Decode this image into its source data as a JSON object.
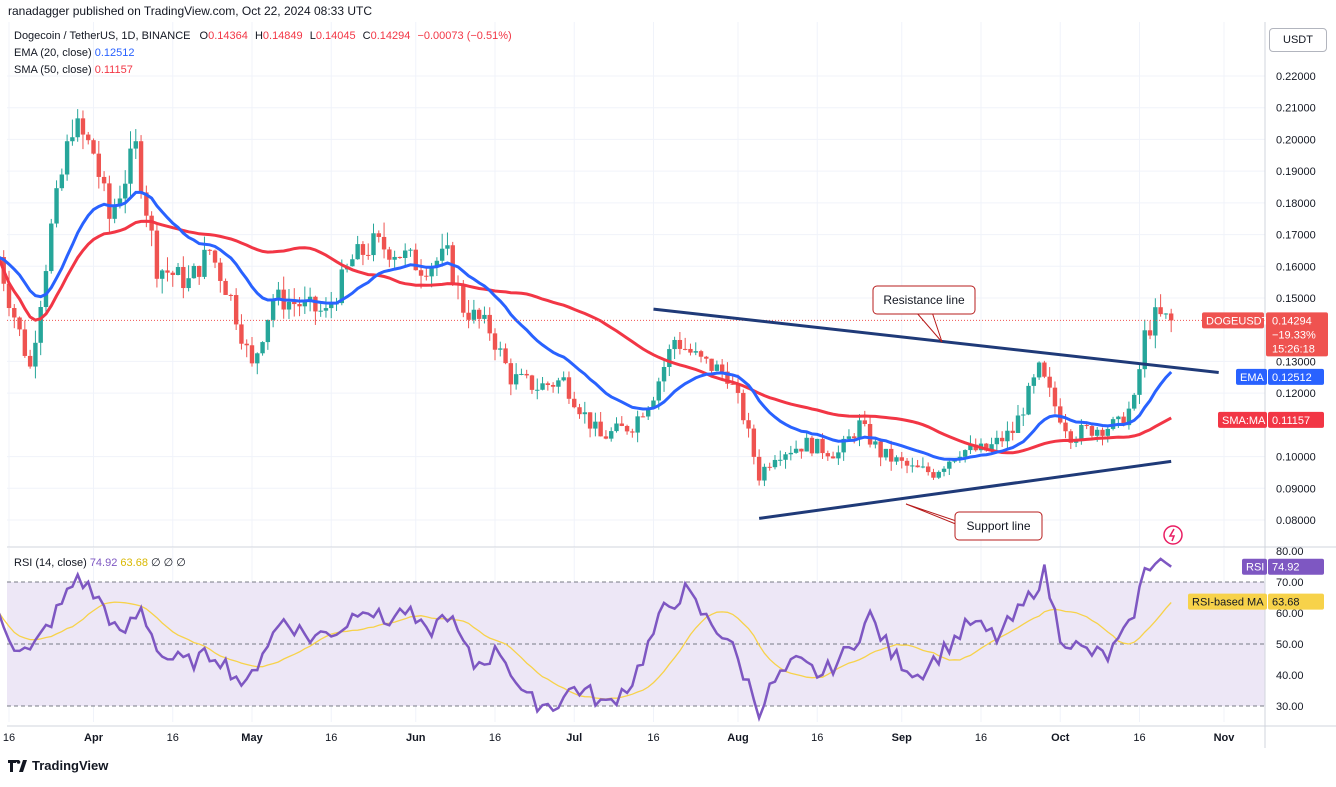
{
  "credit": "ranadagger published on TradingView.com, Oct 22, 2024 08:33 UTC",
  "legend": {
    "symbol": "Dogecoin / TetherUS, 1D, BINANCE",
    "o_label": "O",
    "o": "0.14364",
    "h_label": "H",
    "h": "0.14849",
    "l_label": "L",
    "l": "0.14045",
    "c_label": "C",
    "c": "0.14294",
    "change": "−0.00073 (−0.51%)",
    "ema_label": "EMA (20, close)",
    "ema_value": "0.12512",
    "sma_label": "SMA (50, close)",
    "sma_value": "0.11157",
    "rsi_label": "RSI (14, close)",
    "rsi_value": "74.92",
    "rsi_ma_value": "63.68",
    "rsi_extra": "∅ ∅ ∅"
  },
  "currency_button": "USDT",
  "footer_brand": "TradingView",
  "colors": {
    "up": "#26a69a",
    "down": "#ef5350",
    "ema": "#2962ff",
    "sma": "#f23645",
    "rsi": "#7e57c2",
    "rsi_ma": "#f7d24a",
    "trendline": "#1f3a78",
    "rsi_band": "#ede7f6"
  },
  "chart_data": [
    {
      "type": "candlestick",
      "title": "Dogecoin / TetherUS, 1D, BINANCE",
      "ylim": [
        0.075,
        0.227
      ],
      "y_ticks": [
        "0.22000",
        "0.21000",
        "0.20000",
        "0.19000",
        "0.18000",
        "0.17000",
        "0.16000",
        "0.15000",
        "0.13000",
        "0.12000",
        "0.10000",
        "0.09000",
        "0.08000"
      ],
      "x_ticks": [
        "16",
        "Apr",
        "16",
        "May",
        "16",
        "Jun",
        "16",
        "Jul",
        "16",
        "Aug",
        "16",
        "Sep",
        "16",
        "Oct",
        "16",
        "Nov"
      ],
      "x_tick_dates": [
        "2024-03-16",
        "2024-04-01",
        "2024-04-16",
        "2024-05-01",
        "2024-05-16",
        "2024-06-01",
        "2024-06-16",
        "2024-07-01",
        "2024-07-16",
        "2024-08-01",
        "2024-08-16",
        "2024-09-01",
        "2024-09-16",
        "2024-10-01",
        "2024-10-16",
        "2024-11-01"
      ],
      "close_anchors": [
        [
          "2024-03-14",
          0.163
        ],
        [
          "2024-03-16",
          0.15
        ],
        [
          "2024-03-20",
          0.128
        ],
        [
          "2024-03-24",
          0.172
        ],
        [
          "2024-03-28",
          0.205
        ],
        [
          "2024-04-01",
          0.196
        ],
        [
          "2024-04-04",
          0.175
        ],
        [
          "2024-04-09",
          0.197
        ],
        [
          "2024-04-13",
          0.16
        ],
        [
          "2024-04-19",
          0.155
        ],
        [
          "2024-04-23",
          0.165
        ],
        [
          "2024-04-27",
          0.15
        ],
        [
          "2024-05-01",
          0.128
        ],
        [
          "2024-05-05",
          0.15
        ],
        [
          "2024-05-10",
          0.148
        ],
        [
          "2024-05-15",
          0.145
        ],
        [
          "2024-05-20",
          0.162
        ],
        [
          "2024-05-24",
          0.167
        ],
        [
          "2024-05-28",
          0.165
        ],
        [
          "2024-06-02",
          0.16
        ],
        [
          "2024-06-07",
          0.163
        ],
        [
          "2024-06-10",
          0.147
        ],
        [
          "2024-06-15",
          0.14
        ],
        [
          "2024-06-19",
          0.125
        ],
        [
          "2024-06-24",
          0.122
        ],
        [
          "2024-06-29",
          0.124
        ],
        [
          "2024-07-03",
          0.113
        ],
        [
          "2024-07-06",
          0.106
        ],
        [
          "2024-07-12",
          0.11
        ],
        [
          "2024-07-16",
          0.12
        ],
        [
          "2024-07-20",
          0.137
        ],
        [
          "2024-07-25",
          0.13
        ],
        [
          "2024-07-30",
          0.126
        ],
        [
          "2024-08-02",
          0.113
        ],
        [
          "2024-08-05",
          0.094
        ],
        [
          "2024-08-08",
          0.101
        ],
        [
          "2024-08-14",
          0.104
        ],
        [
          "2024-08-20",
          0.101
        ],
        [
          "2024-08-24",
          0.11
        ],
        [
          "2024-08-28",
          0.101
        ],
        [
          "2024-09-03",
          0.096
        ],
        [
          "2024-09-07",
          0.095
        ],
        [
          "2024-09-12",
          0.102
        ],
        [
          "2024-09-17",
          0.102
        ],
        [
          "2024-09-22",
          0.108
        ],
        [
          "2024-09-27",
          0.127
        ],
        [
          "2024-09-30",
          0.116
        ],
        [
          "2024-10-03",
          0.107
        ],
        [
          "2024-10-08",
          0.109
        ],
        [
          "2024-10-12",
          0.11
        ],
        [
          "2024-10-15",
          0.117
        ],
        [
          "2024-10-17",
          0.138
        ],
        [
          "2024-10-19",
          0.144
        ],
        [
          "2024-10-22",
          0.14294
        ]
      ],
      "series": [
        {
          "name": "EMA",
          "label_value": "0.12512"
        },
        {
          "name": "SMA:MA",
          "label_value": "0.11157"
        }
      ],
      "price_tag": {
        "symbol": "DOGEUSDT",
        "value": "0.14294",
        "change": "−19.33%",
        "countdown": "15:26:18"
      },
      "annotations": [
        {
          "text": "Resistance line",
          "from": [
            "2024-07-16",
            0.1465
          ],
          "to": [
            "2024-10-31",
            0.1265
          ]
        },
        {
          "text": "Support line",
          "from": [
            "2024-08-05",
            0.0805
          ],
          "to": [
            "2024-10-22",
            0.0985
          ]
        }
      ]
    },
    {
      "type": "line",
      "title": "RSI (14, close)",
      "ylim": [
        27,
        81
      ],
      "y_ticks": [
        "80.00",
        "70.00",
        "60.00",
        "50.00",
        "40.00",
        "30.00"
      ],
      "band": [
        30,
        70
      ],
      "levels": [
        70,
        50,
        30
      ],
      "rsi_anchors": [
        [
          "2024-03-14",
          60
        ],
        [
          "2024-03-17",
          50
        ],
        [
          "2024-03-20",
          47
        ],
        [
          "2024-03-23",
          55
        ],
        [
          "2024-03-26",
          63
        ],
        [
          "2024-03-29",
          72
        ],
        [
          "2024-04-03",
          62
        ],
        [
          "2024-04-06",
          52
        ],
        [
          "2024-04-10",
          61
        ],
        [
          "2024-04-14",
          46
        ],
        [
          "2024-04-19",
          44
        ],
        [
          "2024-04-24",
          47
        ],
        [
          "2024-04-30",
          36
        ],
        [
          "2024-05-03",
          48
        ],
        [
          "2024-05-07",
          58
        ],
        [
          "2024-05-12",
          52
        ],
        [
          "2024-05-18",
          55
        ],
        [
          "2024-05-22",
          63
        ],
        [
          "2024-05-26",
          57
        ],
        [
          "2024-05-30",
          61
        ],
        [
          "2024-06-03",
          53
        ],
        [
          "2024-06-07",
          60
        ],
        [
          "2024-06-12",
          43
        ],
        [
          "2024-06-17",
          48
        ],
        [
          "2024-06-22",
          32
        ],
        [
          "2024-06-27",
          30
        ],
        [
          "2024-07-01",
          36
        ],
        [
          "2024-07-04",
          34
        ],
        [
          "2024-07-07",
          30
        ],
        [
          "2024-07-12",
          38
        ],
        [
          "2024-07-18",
          61
        ],
        [
          "2024-07-22",
          67
        ],
        [
          "2024-07-26",
          58
        ],
        [
          "2024-07-30",
          52
        ],
        [
          "2024-08-03",
          37
        ],
        [
          "2024-08-05",
          29
        ],
        [
          "2024-08-08",
          38
        ],
        [
          "2024-08-12",
          44
        ],
        [
          "2024-08-17",
          40
        ],
        [
          "2024-08-22",
          48
        ],
        [
          "2024-08-26",
          59
        ],
        [
          "2024-08-30",
          47
        ],
        [
          "2024-09-04",
          40
        ],
        [
          "2024-09-09",
          48
        ],
        [
          "2024-09-14",
          57
        ],
        [
          "2024-09-19",
          52
        ],
        [
          "2024-09-24",
          62
        ],
        [
          "2024-09-28",
          73
        ],
        [
          "2024-10-01",
          53
        ],
        [
          "2024-10-05",
          48
        ],
        [
          "2024-10-10",
          46
        ],
        [
          "2024-10-14",
          55
        ],
        [
          "2024-10-17",
          73
        ],
        [
          "2024-10-19",
          78
        ],
        [
          "2024-10-22",
          74.92
        ]
      ],
      "series": [
        {
          "name": "RSI",
          "label_value": "74.92"
        },
        {
          "name": "RSI-based MA",
          "label_value": "63.68"
        }
      ]
    }
  ]
}
